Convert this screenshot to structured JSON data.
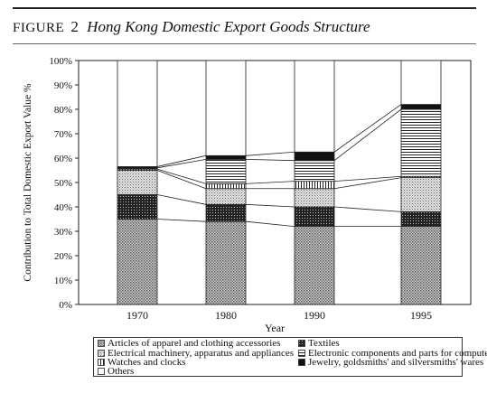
{
  "figure": {
    "label": "FIGURE",
    "number": "2",
    "title": "Hong Kong Domestic Export Goods Structure"
  },
  "chart_data": {
    "type": "bar",
    "stacked": true,
    "categories": [
      "1970",
      "1980",
      "1990",
      "1995"
    ],
    "xlabel": "Year",
    "ylabel": "Contribution to Total Domestic Export Value %",
    "ylim": [
      0,
      100
    ],
    "yticks": [
      "0%",
      "10%",
      "20%",
      "30%",
      "40%",
      "50%",
      "60%",
      "70%",
      "80%",
      "90%",
      "100%"
    ],
    "connector_lines": true,
    "series": [
      {
        "name": "Articles of apparel and clothing accessories",
        "values": [
          35,
          34,
          32,
          32
        ],
        "pattern": "dots",
        "color": "#9a9a9a"
      },
      {
        "name": "Textiles",
        "values": [
          10,
          7,
          8,
          6
        ],
        "pattern": "dense-grid",
        "color": "#3a3a3a"
      },
      {
        "name": "Electrical machinery, apparatus and appliances",
        "values": [
          10,
          6.5,
          7.5,
          14
        ],
        "pattern": "light-dots",
        "color": "#c4c4c4"
      },
      {
        "name": "Watches and clocks",
        "values": [
          0.5,
          2,
          3,
          0.5
        ],
        "pattern": "vertical-lines",
        "color": "#555555"
      },
      {
        "name": "Electronic components and parts for computer",
        "values": [
          0.5,
          10,
          8.5,
          27.5
        ],
        "pattern": "horizontal-lines",
        "color": "#222222"
      },
      {
        "name": "Jewelry, goldsmiths' and silversmiths' wares",
        "values": [
          0.5,
          1.5,
          3.5,
          2
        ],
        "pattern": "black",
        "color": "#111111"
      },
      {
        "name": "Others",
        "values": [
          43.5,
          39,
          37.5,
          18
        ],
        "pattern": "white",
        "color": "#ffffff"
      }
    ],
    "legend_position": "bottom"
  },
  "legend": {
    "items": [
      "Articles of apparel and clothing accessories",
      "Textiles",
      "Electrical machinery, apparatus and appliances",
      "Electronic components and parts for computer",
      "Watches and clocks",
      "Jewelry, goldsmiths' and silversmiths' wares",
      "Others"
    ]
  }
}
